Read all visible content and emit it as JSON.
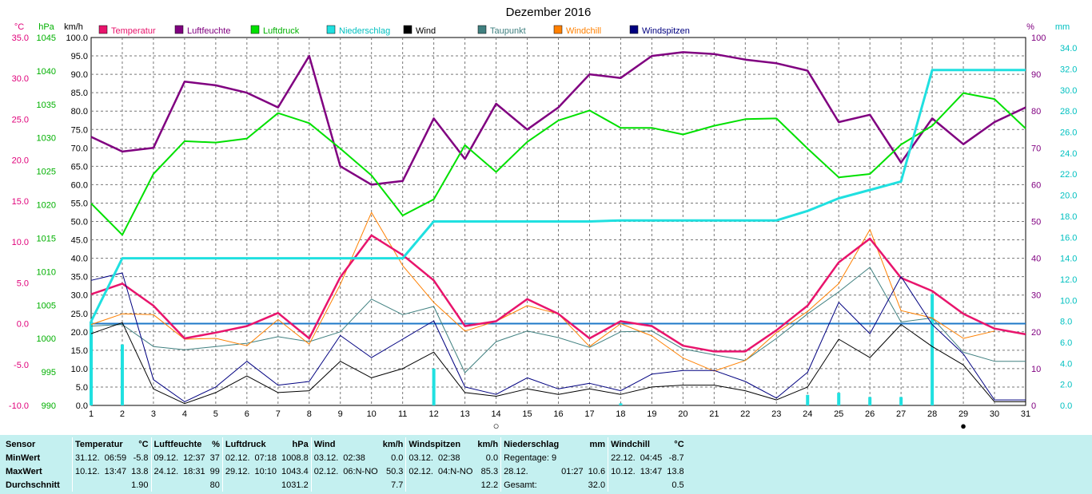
{
  "chart_data": {
    "type": "line",
    "title": "Dezember 2016",
    "x": [
      1,
      2,
      3,
      4,
      5,
      6,
      7,
      8,
      9,
      10,
      11,
      12,
      13,
      14,
      15,
      16,
      17,
      18,
      19,
      20,
      21,
      22,
      23,
      24,
      25,
      26,
      27,
      28,
      29,
      30,
      31
    ],
    "axes": {
      "temp": {
        "unit": "°C",
        "range": [
          -10,
          35
        ],
        "ticks": [
          "35.0",
          "30.0",
          "25.0",
          "20.0",
          "15.0",
          "10.0",
          "5.0",
          "0.0",
          "-5.0",
          "-10.0"
        ],
        "color": "#e0007a"
      },
      "pressure": {
        "unit": "hPa",
        "range": [
          990,
          1045
        ],
        "ticks": [
          "1045",
          "1040",
          "1035",
          "1030",
          "1025",
          "1020",
          "1015",
          "1010",
          "1005",
          "1000",
          "995",
          "990"
        ],
        "color": "#00b000"
      },
      "wind": {
        "unit": "km/h",
        "range": [
          0,
          100
        ],
        "ticks": [
          "100.0",
          "95.0",
          "90.0",
          "85.0",
          "80.0",
          "75.0",
          "70.0",
          "65.0",
          "60.0",
          "55.0",
          "50.0",
          "45.0",
          "40.0",
          "35.0",
          "30.0",
          "25.0",
          "20.0",
          "15.0",
          "10.0",
          "5.0",
          "0.0"
        ],
        "color": "#000000"
      },
      "humidity": {
        "unit": "%",
        "range": [
          0,
          100
        ],
        "ticks": [
          "100",
          "90",
          "80",
          "70",
          "60",
          "50",
          "40",
          "30",
          "20",
          "10",
          "0"
        ],
        "color": "#800080"
      },
      "precip": {
        "unit": "mm",
        "range": [
          0,
          35
        ],
        "ticks": [
          "34.0",
          "32.0",
          "30.0",
          "28.0",
          "26.0",
          "24.0",
          "22.0",
          "20.0",
          "18.0",
          "16.0",
          "14.0",
          "12.0",
          "10.0",
          "8.0",
          "6.0",
          "4.0",
          "2.0",
          "0.0"
        ],
        "color": "#00c0c0"
      }
    },
    "grid": true,
    "zero_line_temp": 0,
    "legend": [
      {
        "name": "Temperatur",
        "color": "#e8146c",
        "text_color": "#e8146c"
      },
      {
        "name": "Luftfeuchte",
        "color": "#800080",
        "text_color": "#800080"
      },
      {
        "name": "Luftdruck",
        "color": "#00e000",
        "text_color": "#00b000"
      },
      {
        "name": "Niederschlag",
        "color": "#20e0e0",
        "text_color": "#00c0c0"
      },
      {
        "name": "Wind",
        "color": "#000000",
        "text_color": "#000000"
      },
      {
        "name": "Taupunkt",
        "color": "#408080",
        "text_color": "#408080"
      },
      {
        "name": "Windchill",
        "color": "#ff8000",
        "text_color": "#ff8000"
      },
      {
        "name": "Windspitzen",
        "color": "#000080",
        "text_color": "#000080"
      }
    ],
    "series": [
      {
        "name": "Luftfeuchte",
        "axis": "humidity",
        "color": "#800080",
        "width": 2.5,
        "values": [
          73,
          69,
          70,
          88,
          87,
          85,
          81,
          95,
          65,
          60,
          61,
          78,
          67,
          82,
          75,
          81,
          90,
          89,
          95,
          96,
          95.5,
          94,
          93,
          91,
          77,
          79,
          66,
          78,
          71,
          77,
          81
        ]
      },
      {
        "name": "Luftdruck",
        "axis": "pressure",
        "color": "#00e000",
        "width": 2,
        "values": [
          1020.2,
          1015.5,
          1024.6,
          1029.5,
          1029.3,
          1029.9,
          1033.7,
          1032.2,
          1028.4,
          1024.4,
          1018.4,
          1020.8,
          1028.9,
          1024.9,
          1029.4,
          1032.6,
          1034.1,
          1031.5,
          1031.5,
          1030.5,
          1031.8,
          1032.8,
          1032.9,
          1028.4,
          1024.1,
          1024.6,
          1029,
          1031.8,
          1036.7,
          1035.8,
          1031.4
        ]
      },
      {
        "name": "Taupunkt",
        "axis": "temp",
        "color": "#408080",
        "width": 1,
        "values": [
          -0.3,
          -0.1,
          -2.8,
          -3.2,
          -2.8,
          -2.4,
          -1.6,
          -2.2,
          -1,
          3,
          1.1,
          2.1,
          -6,
          -2.2,
          -0.9,
          -1.7,
          -2.9,
          -1,
          -0.9,
          -3.1,
          -3.8,
          -4.5,
          -1.8,
          1.2,
          3.9,
          6.9,
          0.2,
          0.7,
          -3.5,
          -4.6,
          -4.6
        ]
      },
      {
        "name": "Windchill",
        "axis": "temp",
        "color": "#ff8000",
        "width": 1,
        "values": [
          -0.1,
          1.2,
          1.1,
          -1.9,
          -1.8,
          -2.7,
          0.5,
          -2.5,
          4.8,
          13.6,
          7.1,
          2.6,
          -0.9,
          0.3,
          2.2,
          1.2,
          -2.8,
          0,
          -1.5,
          -4.2,
          -5.8,
          -4.5,
          -1.1,
          1.5,
          4.9,
          11.5,
          1.6,
          0.7,
          -1.8,
          -0.9,
          null
        ]
      },
      {
        "name": "Temperatur",
        "axis": "temp",
        "color": "#e8146c",
        "width": 2.5,
        "values": [
          3.6,
          4.9,
          2.2,
          -1.8,
          -1.1,
          -0.3,
          1.3,
          -1.8,
          5.7,
          10.8,
          8.4,
          5.3,
          -0.3,
          0.3,
          3,
          1.2,
          -1.8,
          0.3,
          -0.3,
          -2.7,
          -3.4,
          -3.4,
          -0.8,
          2.2,
          7.5,
          10.4,
          5.6,
          4,
          1.2,
          -0.6,
          -1.3
        ]
      },
      {
        "name": "Windspitzen",
        "axis": "wind",
        "color": "#000080",
        "width": 1,
        "values": [
          34,
          36,
          7,
          1,
          5,
          12,
          5.5,
          6.5,
          19,
          13,
          18,
          23,
          5,
          3,
          7.5,
          4.5,
          6,
          4,
          8.5,
          9.5,
          9.5,
          6.5,
          2,
          9,
          28,
          19.5,
          35,
          22,
          14,
          1.5,
          1.5
        ]
      },
      {
        "name": "Wind",
        "axis": "wind",
        "color": "#000000",
        "width": 1,
        "values": [
          19.5,
          22.5,
          4.5,
          0.5,
          3.5,
          8,
          3.5,
          4,
          12,
          7.5,
          10,
          14.5,
          3.5,
          2.5,
          4.5,
          3,
          4.5,
          3,
          5,
          5.5,
          5.5,
          4,
          1.5,
          5,
          18,
          13,
          22,
          16,
          11,
          1,
          1
        ]
      },
      {
        "name": "Niederschlag Summe",
        "axis": "precip",
        "color": "#20e0e0",
        "width": 3,
        "values": [
          8,
          14,
          14,
          14,
          14,
          14,
          14,
          14,
          14,
          14,
          14,
          17.5,
          17.5,
          17.5,
          17.5,
          17.5,
          17.5,
          17.6,
          17.6,
          17.6,
          17.6,
          17.6,
          17.6,
          18.5,
          19.7,
          20.5,
          21.3,
          31.9,
          31.9,
          31.9,
          31.9
        ]
      }
    ],
    "precip_bars": [
      {
        "day": 1,
        "mm": 8
      },
      {
        "day": 2,
        "mm": 5.8
      },
      {
        "day": 12,
        "mm": 3.5
      },
      {
        "day": 18,
        "mm": 0.2
      },
      {
        "day": 24,
        "mm": 1
      },
      {
        "day": 25,
        "mm": 1.2
      },
      {
        "day": 26,
        "mm": 0.8
      },
      {
        "day": 27,
        "mm": 0.8
      },
      {
        "day": 28,
        "mm": 10.6
      }
    ],
    "moon_markers": [
      {
        "day": 14,
        "phase": "full",
        "symbol": "○"
      },
      {
        "day": 29,
        "phase": "new",
        "symbol": "●"
      }
    ]
  },
  "stats": {
    "rows": [
      [
        "Sensor",
        "MinWert",
        "MaxWert",
        "Durchschnitt"
      ]
    ],
    "columns": [
      {
        "title": "Temperatur",
        "unit": "°C",
        "rows": [
          [
            "31.12.",
            "06:59",
            "-5.8"
          ],
          [
            "10.12.",
            "13:47",
            "13.8"
          ],
          [
            "",
            "",
            "1.90"
          ]
        ]
      },
      {
        "title": "Luftfeuchte",
        "unit": "%",
        "rows": [
          [
            "09.12.",
            "12:37",
            "37"
          ],
          [
            "24.12.",
            "18:31",
            "99"
          ],
          [
            "",
            "",
            "80"
          ]
        ]
      },
      {
        "title": "Luftdruck",
        "unit": "hPa",
        "rows": [
          [
            "02.12.",
            "07:18",
            "1008.8"
          ],
          [
            "29.12.",
            "10:10",
            "1043.4"
          ],
          [
            "",
            "",
            "1031.2"
          ]
        ]
      },
      {
        "title": "Wind",
        "unit": "km/h",
        "rows": [
          [
            "03.12.",
            "02:38",
            "0.0"
          ],
          [
            "02.12.",
            "06:N-NO",
            "50.3"
          ],
          [
            "",
            "",
            "7.7"
          ]
        ]
      },
      {
        "title": "Windspitzen",
        "unit": "km/h",
        "rows": [
          [
            "03.12.",
            "02:38",
            "0.0"
          ],
          [
            "02.12.",
            "04:N-NO",
            "85.3"
          ],
          [
            "",
            "",
            "12.2"
          ]
        ]
      },
      {
        "title": "Niederschlag",
        "unit": "mm",
        "rows": [
          [
            "Regentage: 9",
            "",
            ""
          ],
          [
            "28.12.",
            "01:27",
            "10.6"
          ],
          [
            "Gesamt:",
            "",
            "32.0"
          ]
        ]
      },
      {
        "title": "Windchill",
        "unit": "°C",
        "rows": [
          [
            "22.12.",
            "04:45",
            "-8.7"
          ],
          [
            "10.12.",
            "13:47",
            "13.8"
          ],
          [
            "",
            "",
            "0.5"
          ]
        ]
      }
    ]
  }
}
